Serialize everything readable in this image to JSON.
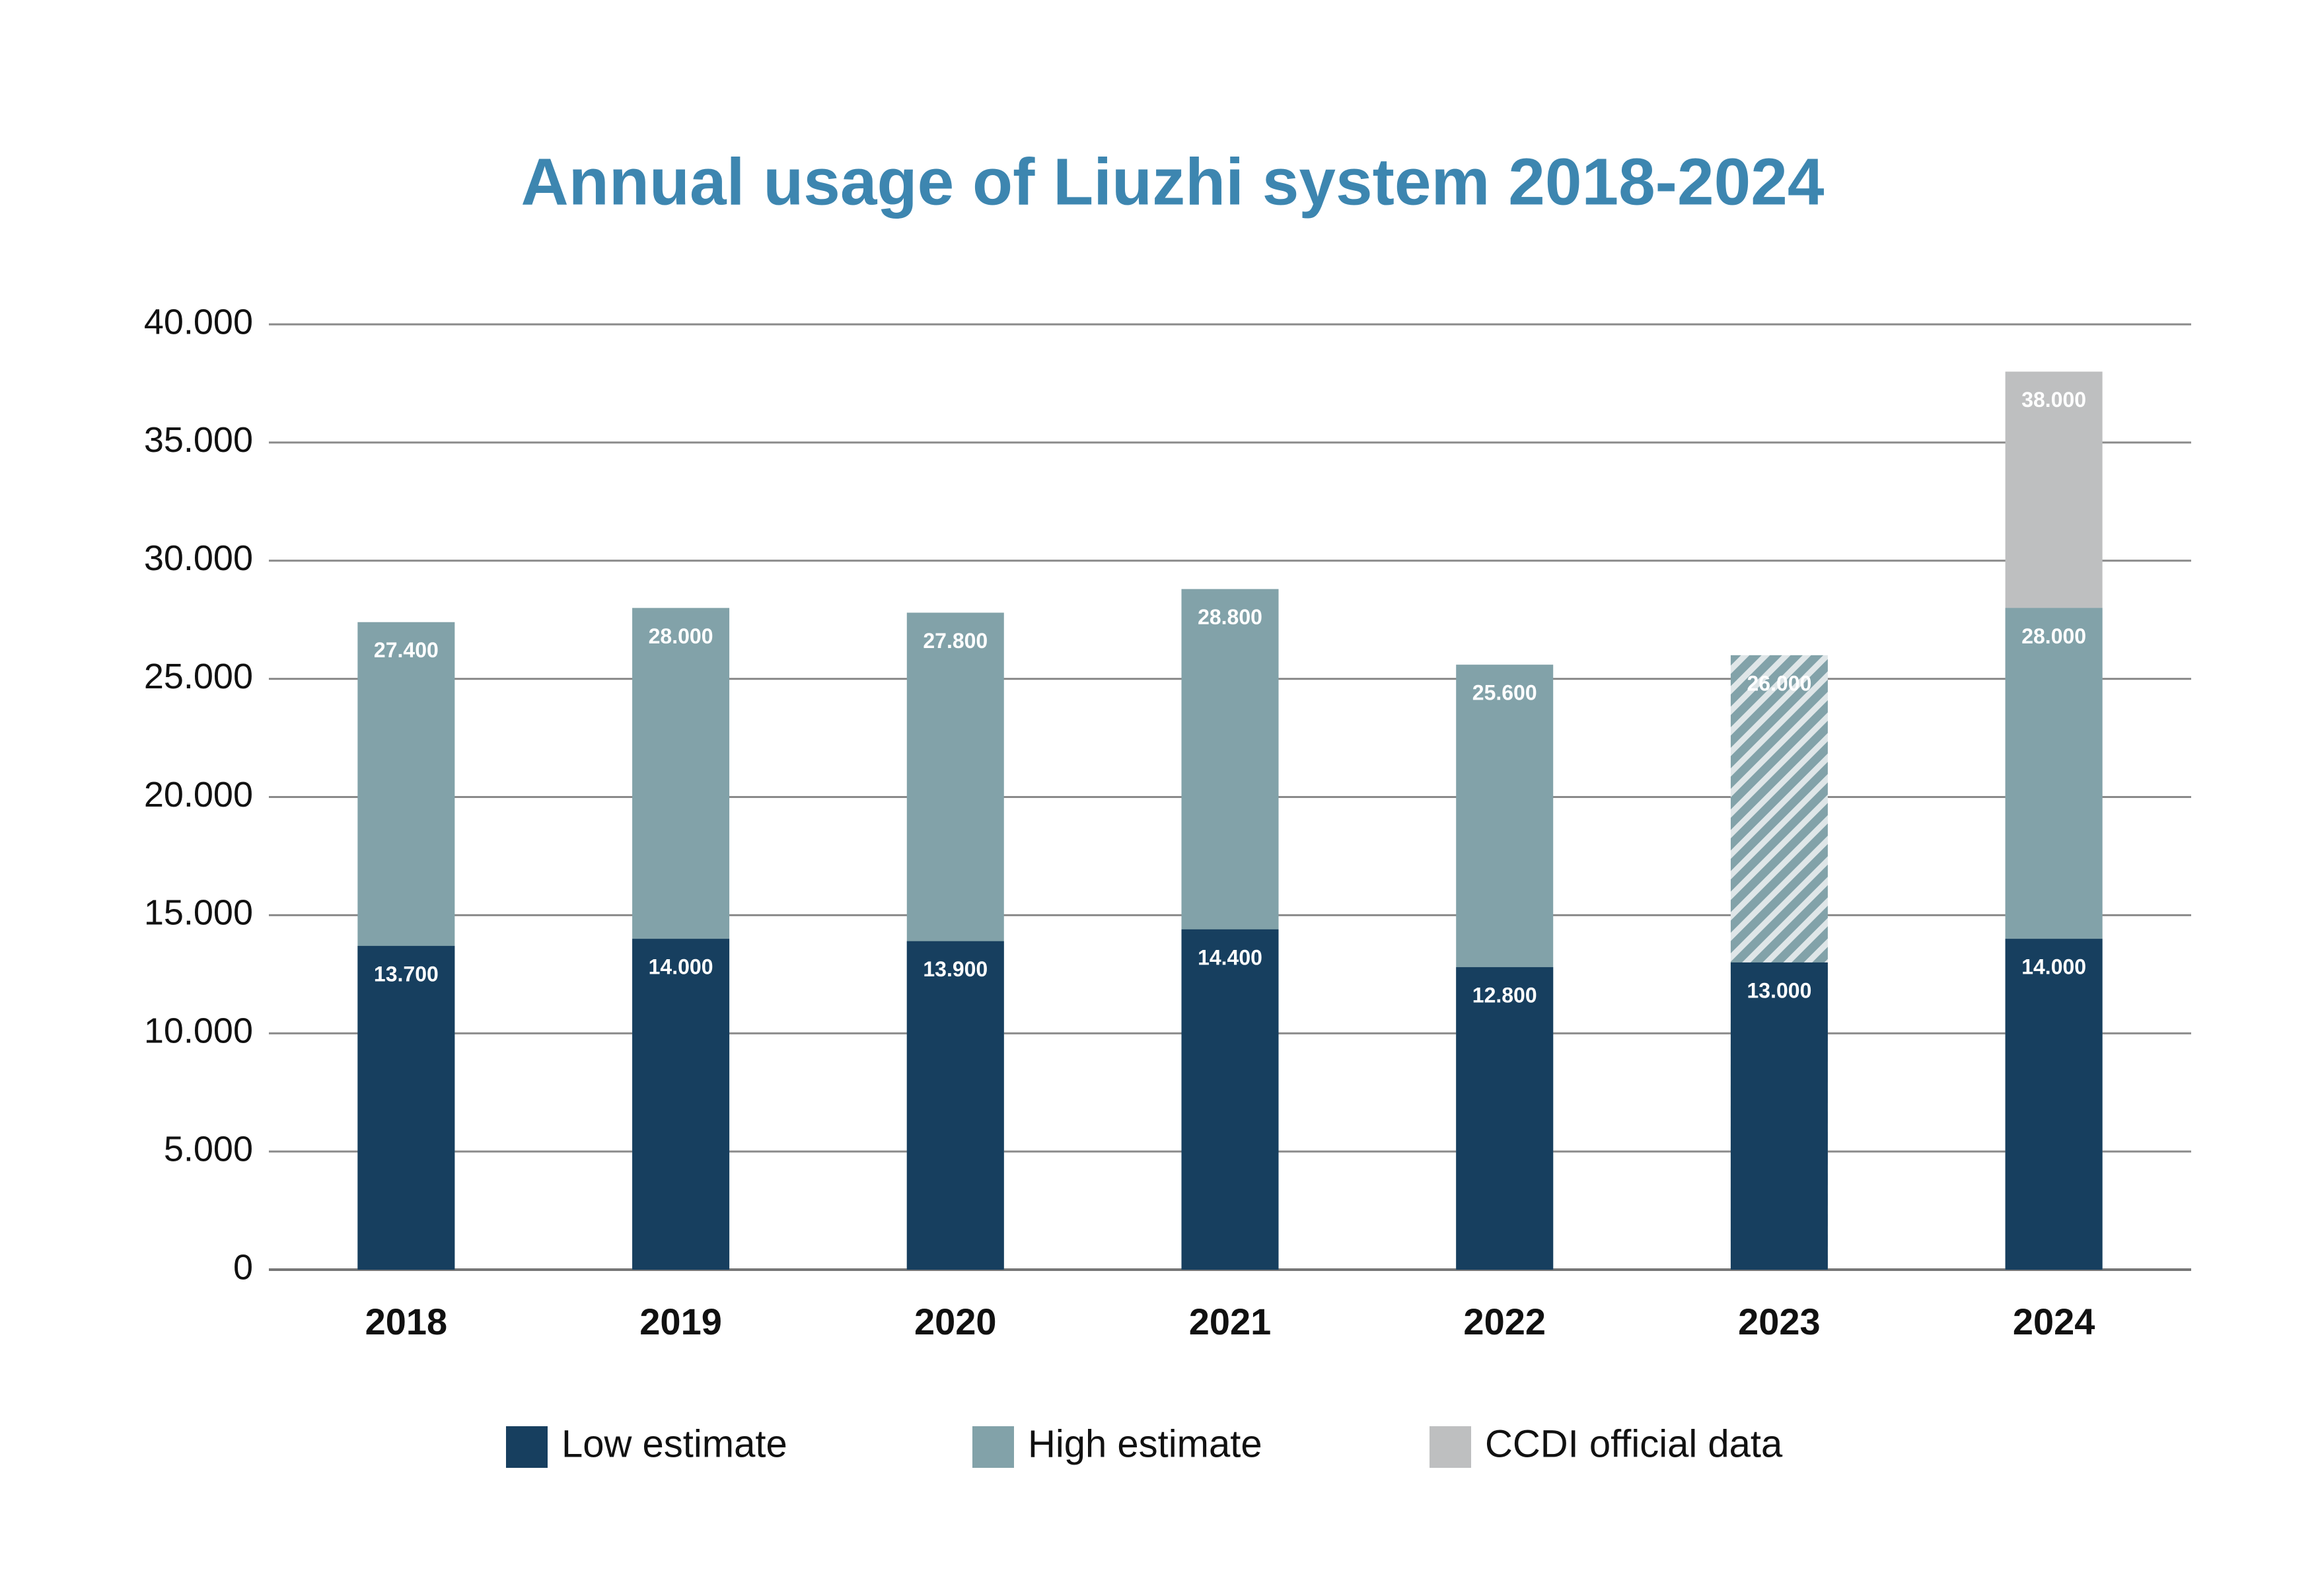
{
  "chart_data": {
    "type": "bar",
    "title": "Annual usage of Liuzhi system 2018-2024",
    "categories": [
      "2018",
      "2019",
      "2020",
      "2021",
      "2022",
      "2023",
      "2024"
    ],
    "series": [
      {
        "name": "Low estimate",
        "color": "#173f5f",
        "values": [
          13700,
          14000,
          13900,
          14400,
          12800,
          13000,
          14000
        ],
        "value_labels": [
          "13.700",
          "14.000",
          "13.900",
          "14.400",
          "12.800",
          "13.000",
          "14.000"
        ]
      },
      {
        "name": "High estimate",
        "color": "#82a2a9",
        "values": [
          27400,
          28000,
          27800,
          28800,
          25600,
          26000,
          28000
        ],
        "value_labels": [
          "27.400",
          "28.000",
          "27.800",
          "28.800",
          "25.600",
          "26.000",
          "28.000"
        ],
        "hatched": [
          false,
          false,
          false,
          false,
          false,
          true,
          false
        ]
      },
      {
        "name": "CCDI official data",
        "color": "#bebfc0",
        "values": [
          null,
          null,
          null,
          null,
          null,
          null,
          38000
        ],
        "value_labels": [
          null,
          null,
          null,
          null,
          null,
          null,
          "38.000"
        ]
      }
    ],
    "ylim": [
      0,
      40000
    ],
    "yticks": [
      {
        "value": 0,
        "label": "0"
      },
      {
        "value": 5000,
        "label": "5.000"
      },
      {
        "value": 10000,
        "label": "10.000"
      },
      {
        "value": 15000,
        "label": "15.000"
      },
      {
        "value": 20000,
        "label": "20.000"
      },
      {
        "value": 25000,
        "label": "25.000"
      },
      {
        "value": 30000,
        "label": "30.000"
      },
      {
        "value": 35000,
        "label": "35.000"
      },
      {
        "value": 40000,
        "label": "40.000"
      }
    ],
    "grid": true,
    "legend": "bottom"
  }
}
